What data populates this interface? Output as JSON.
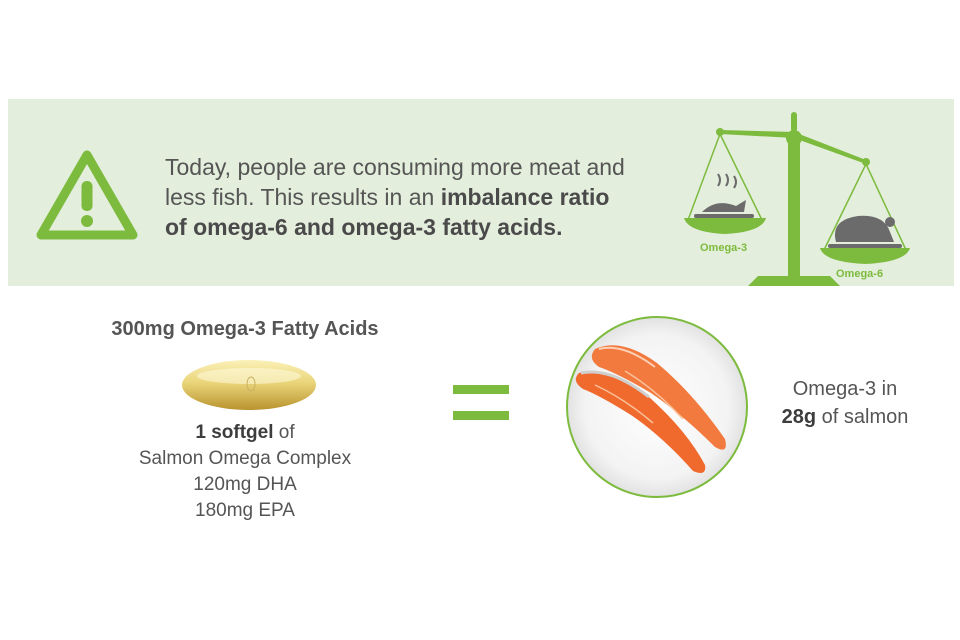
{
  "banner": {
    "line1": "Today, people are consuming more meat and",
    "line2_plain": "less fish. This results in an ",
    "line2_bold": "imbalance ratio",
    "line3_bold": "of omega-6 and omega-3 fatty acids."
  },
  "scale": {
    "left_label": "Omega-3",
    "right_label": "Omega-6"
  },
  "softgel": {
    "heading": "300mg Omega-3 Fatty Acids",
    "count_bold": "1 softgel",
    "count_suffix": " of",
    "product": "Salmon Omega Complex",
    "dha": "120mg DHA",
    "epa": "180mg EPA"
  },
  "salmon": {
    "line1": "Omega-3 in",
    "amount_bold": "28g",
    "amount_suffix": " of salmon"
  },
  "colors": {
    "accent_green": "#7dbb3e",
    "banner_bg": "#e4eedc",
    "text": "#555555"
  },
  "icons": [
    "warning-icon",
    "balance-scale-icon",
    "fish-icon",
    "turkey-icon",
    "equals-icon",
    "softgel-capsule",
    "salmon-steak-image"
  ]
}
